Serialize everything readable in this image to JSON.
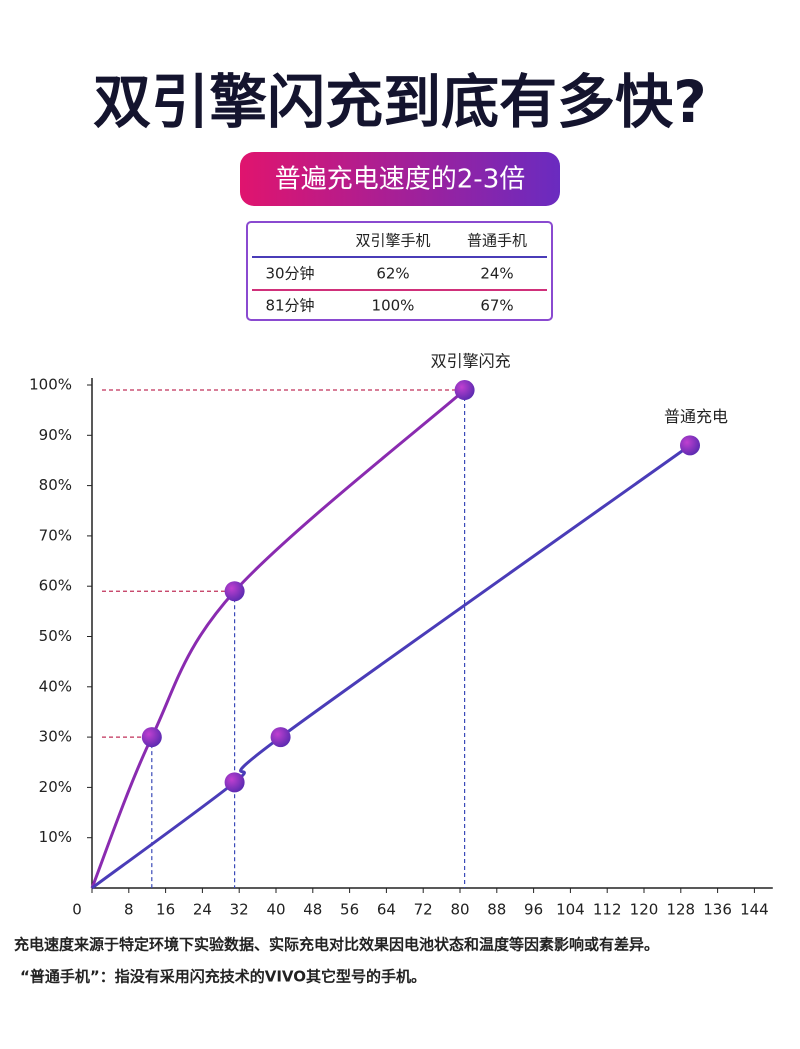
{
  "header": {
    "title": "双引擎闪充到底有多快?",
    "badge": "普遍充电速度的2-3倍"
  },
  "table": {
    "columns": [
      "双引擎手机",
      "普通手机"
    ],
    "rows": [
      [
        "30分钟",
        "62%",
        "24%"
      ],
      [
        "81分钟",
        "100%",
        "67%"
      ]
    ]
  },
  "chart_data": {
    "type": "line",
    "series": [
      {
        "name": "双引擎闪充",
        "color": "#8a2bb0",
        "x": [
          0,
          13,
          31,
          81
        ],
        "values": [
          0,
          30,
          59,
          99
        ]
      },
      {
        "name": "普通充电",
        "color": "#4a3cb8",
        "x": [
          0,
          31,
          41,
          130
        ],
        "values": [
          0,
          21,
          30,
          88
        ]
      }
    ],
    "xlim": [
      0,
      148
    ],
    "xticks": [
      0,
      8,
      16,
      24,
      32,
      40,
      48,
      56,
      64,
      72,
      80,
      88,
      96,
      104,
      112,
      120,
      128,
      136,
      144
    ],
    "ylim": [
      0,
      100
    ],
    "yticks": [
      {
        "value": 10,
        "label": "10%"
      },
      {
        "value": 20,
        "label": "20%"
      },
      {
        "value": 30,
        "label": "30%"
      },
      {
        "value": 40,
        "label": "40%"
      },
      {
        "value": 50,
        "label": "50%"
      },
      {
        "value": 60,
        "label": "60%"
      },
      {
        "value": 70,
        "label": "70%"
      },
      {
        "value": 80,
        "label": "80%"
      },
      {
        "value": 90,
        "label": "90%"
      },
      {
        "value": 100,
        "label": "100%"
      }
    ]
  },
  "notes": [
    "充电速度来源于特定环境下实验数据、实际充电对比效果因电池状态和温度等因素影响或有差异。",
    "“普通手机”：指没有采用闪充技术的VIVO其它型号的手机。"
  ]
}
